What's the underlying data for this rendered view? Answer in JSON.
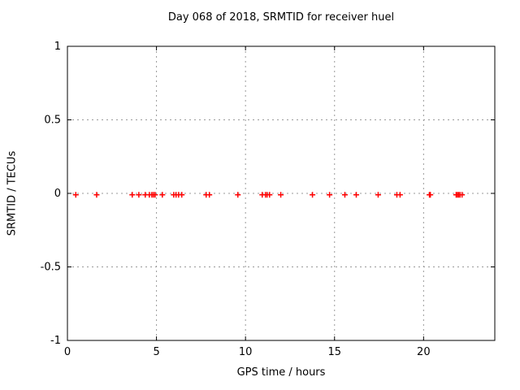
{
  "chart_data": {
    "type": "scatter",
    "title": "Day 068 of 2018, SRMTID for receiver huel",
    "xlabel": "GPS time / hours",
    "ylabel": "SRMTID / TECUs",
    "xlim": [
      0,
      24
    ],
    "ylim": [
      -1,
      1
    ],
    "xticks": [
      0,
      5,
      10,
      15,
      20
    ],
    "yticks": [
      -1,
      -0.5,
      0,
      0.5,
      1
    ],
    "grid": true,
    "legend": "none",
    "marker": "plus",
    "marker_color": "#ff0000",
    "grid_color": "#9a9a9a",
    "border_color": "#000000",
    "background_color": "#ffffff",
    "series": [
      {
        "name": "SRMTID",
        "x": [
          0.47,
          1.64,
          3.64,
          4.01,
          4.37,
          4.6,
          4.74,
          4.83,
          4.92,
          5.33,
          5.97,
          6.1,
          6.24,
          6.42,
          7.79,
          7.97,
          9.57,
          10.94,
          11.12,
          11.21,
          11.35,
          11.98,
          13.76,
          14.72,
          15.58,
          16.22,
          17.45,
          18.5,
          18.68,
          20.33,
          20.38,
          21.83,
          21.9,
          21.97,
          22.05,
          22.16
        ],
        "y": [
          -0.01,
          -0.01,
          -0.01,
          -0.01,
          -0.01,
          -0.01,
          -0.01,
          -0.01,
          -0.01,
          -0.01,
          -0.01,
          -0.01,
          -0.01,
          -0.01,
          -0.01,
          -0.01,
          -0.01,
          -0.01,
          -0.01,
          -0.01,
          -0.01,
          -0.01,
          -0.01,
          -0.01,
          -0.01,
          -0.01,
          -0.01,
          -0.01,
          -0.01,
          -0.01,
          -0.01,
          -0.01,
          -0.01,
          -0.01,
          -0.01,
          -0.01
        ]
      }
    ]
  }
}
